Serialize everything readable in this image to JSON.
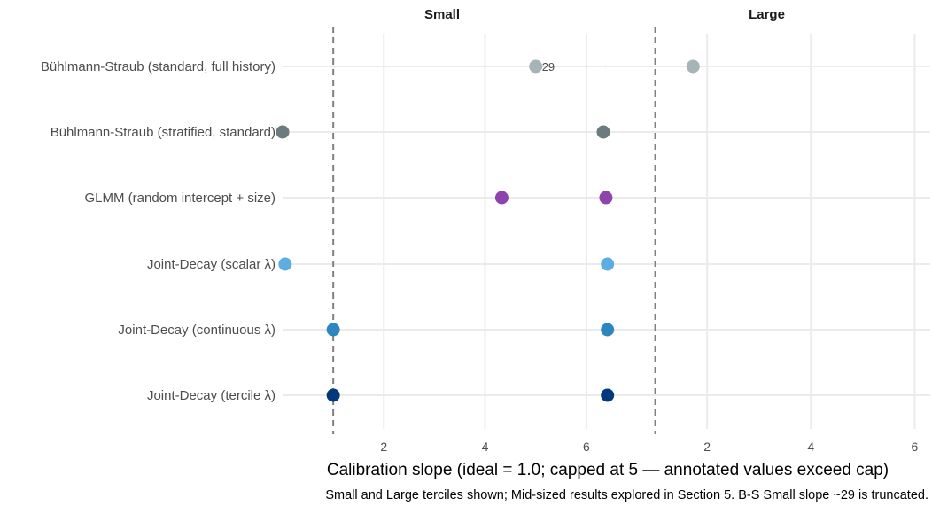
{
  "chart_data": {
    "type": "scatter",
    "panels": [
      "Small",
      "Large"
    ],
    "categories": [
      "Bühlmann-Straub (standard, full history)",
      "Bühlmann-Straub (stratified, standard)",
      "GLMM (random intercept + size)",
      "Joint-Decay (scalar λ)",
      "Joint-Decay (continuous λ)",
      "Joint-Decay (tercile λ)"
    ],
    "colors": [
      "#a6b4b8",
      "#6b7b7f",
      "#8e44ad",
      "#5dade2",
      "#2e86c1",
      "#003a7d"
    ],
    "series": [
      {
        "panel": "Small",
        "values": [
          5.0,
          0.0,
          4.33,
          0.05,
          1.0,
          1.0
        ]
      },
      {
        "panel": "Large",
        "values": [
          1.73,
          0.0,
          0.05,
          0.08,
          0.08,
          0.08
        ]
      }
    ],
    "annotations": [
      {
        "panel": "Small",
        "category": "Bühlmann-Straub (standard, full history)",
        "text": "29"
      }
    ],
    "xlabel": "Calibration slope (ideal = 1.0; capped at 5 — annotated values exceed cap)",
    "caption": "Small and Large terciles shown; Mid-sized results explored in Section 5. B-S Small slope ~29 is truncated.",
    "xticks": [
      2,
      4,
      6
    ],
    "reference_line": 1.0,
    "grid": true,
    "legend": "none"
  }
}
